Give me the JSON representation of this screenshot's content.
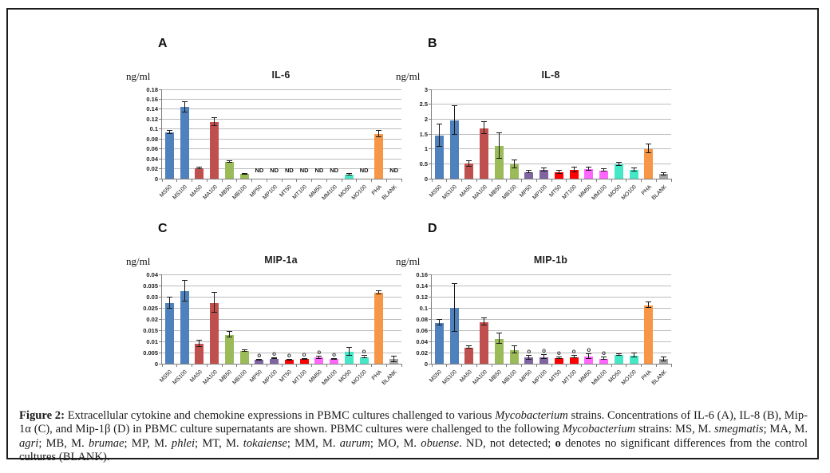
{
  "figure": {
    "caption_segments": [
      {
        "text": "Figure 2:",
        "bold": true
      },
      {
        "text": " Extracellular cytokine and chemokine expressions in PBMC cultures challenged to various "
      },
      {
        "text": "Mycobacterium",
        "italic": true
      },
      {
        "text": " strains. Concentrations of IL-6 (A), IL-8 (B), Mip-1α (C), and Mip-1β (D) in PBMC culture supernatants are shown. PBMC cultures were challenged to the following "
      },
      {
        "text": "Mycobacterium",
        "italic": true
      },
      {
        "text": " strains: MS, M. "
      },
      {
        "text": "smegmatis",
        "italic": true
      },
      {
        "text": "; MA, M. "
      },
      {
        "text": "agri",
        "italic": true
      },
      {
        "text": "; MB, M. "
      },
      {
        "text": "brumae",
        "italic": true
      },
      {
        "text": "; MP, M. "
      },
      {
        "text": "phlei",
        "italic": true
      },
      {
        "text": "; MT, M. "
      },
      {
        "text": "tokaiense",
        "italic": true
      },
      {
        "text": "; MM, M. "
      },
      {
        "text": "aurum",
        "italic": true
      },
      {
        "text": "; MO, M. "
      },
      {
        "text": "obuense",
        "italic": true
      },
      {
        "text": ". ND, not detected; "
      },
      {
        "text": "o",
        "bold": true
      },
      {
        "text": " denotes no significant differences from the control cultures (BLANK)."
      }
    ]
  },
  "chart_data": {
    "type": "bar",
    "legend_position": "none",
    "grid": true,
    "nd_label": "ND",
    "sig_label": "o",
    "gridline_color": "#bcbcbc",
    "axis_color": "#808080",
    "error_bar_color": "#1a1a1a",
    "categories": [
      "MS50",
      "MS100",
      "MA50",
      "MA100",
      "MB50",
      "MB100",
      "MP50",
      "MP100",
      "MT50",
      "MT100",
      "MM50",
      "MM100",
      "MO50",
      "MO100",
      "PHA",
      "BLANK"
    ],
    "bar_colors": [
      "#4F81BD",
      "#4F81BD",
      "#C0504D",
      "#C0504D",
      "#9BBB59",
      "#9BBB59",
      "#8064A2",
      "#8064A2",
      "#FE0000",
      "#FE0000",
      "#FF66FF",
      "#FF66FF",
      "#45E8C6",
      "#45E8C6",
      "#F79646",
      "#A5A5A5"
    ],
    "charts": [
      {
        "panel": "A",
        "title": "IL-6",
        "y_axis_label": "ng/ml",
        "ymax": 0.18,
        "ylim": [
          0,
          0.18
        ],
        "tick_values": [
          0,
          0.02,
          0.04,
          0.06,
          0.08,
          0.1,
          0.12,
          0.14,
          0.16,
          0.18
        ],
        "tick_labels": [
          "0",
          "0.02",
          "0.04",
          "0.06",
          "0.08",
          "0.1",
          "0.12",
          "0.14",
          "0.16",
          "0.18"
        ],
        "values": [
          0.093,
          0.144,
          0.021,
          0.114,
          0.034,
          0.009,
          null,
          null,
          null,
          null,
          null,
          null,
          0.008,
          null,
          0.09,
          null
        ],
        "errors": [
          0.003,
          0.011,
          0.002,
          0.008,
          0.002,
          0.001,
          0,
          0,
          0,
          0,
          0,
          0,
          0.001,
          0,
          0.007,
          0
        ],
        "nd": [
          false,
          false,
          false,
          false,
          false,
          false,
          true,
          true,
          true,
          true,
          true,
          true,
          false,
          true,
          false,
          true
        ],
        "sig": [
          false,
          false,
          false,
          false,
          false,
          false,
          false,
          false,
          false,
          false,
          false,
          false,
          false,
          false,
          false,
          false
        ]
      },
      {
        "panel": "B",
        "title": "IL-8",
        "y_axis_label": "ng/ml",
        "ymax": 3,
        "ylim": [
          0,
          3
        ],
        "tick_values": [
          0,
          0.5,
          1,
          1.5,
          2,
          2.5,
          3
        ],
        "tick_labels": [
          "0",
          "0.5",
          "1",
          "1.5",
          "2",
          "2.5",
          "3"
        ],
        "values": [
          1.45,
          1.95,
          0.5,
          1.7,
          1.1,
          0.48,
          0.22,
          0.3,
          0.22,
          0.3,
          0.32,
          0.28,
          0.48,
          0.3,
          1.0,
          0.15
        ],
        "errors": [
          0.38,
          0.48,
          0.1,
          0.2,
          0.44,
          0.13,
          0.04,
          0.05,
          0.06,
          0.08,
          0.05,
          0.05,
          0.05,
          0.06,
          0.15,
          0.03
        ],
        "nd": [
          false,
          false,
          false,
          false,
          false,
          false,
          false,
          false,
          false,
          false,
          false,
          false,
          false,
          false,
          false,
          false
        ],
        "sig": [
          false,
          false,
          false,
          false,
          false,
          false,
          false,
          false,
          false,
          false,
          false,
          false,
          false,
          false,
          false,
          false
        ]
      },
      {
        "panel": "C",
        "title": "MIP-1a",
        "y_axis_label": "ng/ml",
        "ymax": 0.04,
        "ylim": [
          0,
          0.04
        ],
        "tick_values": [
          0,
          0.005,
          0.01,
          0.015,
          0.02,
          0.025,
          0.03,
          0.035,
          0.04
        ],
        "tick_labels": [
          "0",
          "0.005",
          "0.01",
          "0.015",
          "0.02",
          "0.025",
          "0.03",
          "0.035",
          "0.04"
        ],
        "values": [
          0.027,
          0.0325,
          0.009,
          0.0273,
          0.013,
          0.0057,
          0.0017,
          0.0023,
          0.0017,
          0.002,
          0.0027,
          0.002,
          0.0055,
          0.003,
          0.0318,
          0.002
        ],
        "errors": [
          0.0025,
          0.0045,
          0.0015,
          0.0045,
          0.0012,
          0.0003,
          0.0002,
          0.0003,
          0.0002,
          0.0003,
          0.0004,
          0.0003,
          0.0018,
          0.0004,
          0.0008,
          0.0012
        ],
        "nd": [
          false,
          false,
          false,
          false,
          false,
          false,
          false,
          false,
          false,
          false,
          false,
          false,
          false,
          false,
          false,
          false
        ],
        "sig": [
          false,
          false,
          false,
          false,
          false,
          false,
          true,
          true,
          true,
          true,
          true,
          true,
          false,
          true,
          false,
          false
        ]
      },
      {
        "panel": "D",
        "title": "MIP-1b",
        "y_axis_label": "ng/ml",
        "ymax": 0.16,
        "ylim": [
          0,
          0.16
        ],
        "tick_values": [
          0,
          0.02,
          0.04,
          0.06,
          0.08,
          0.1,
          0.12,
          0.14,
          0.16
        ],
        "tick_labels": [
          "0",
          "0.02",
          "0.04",
          "0.06",
          "0.08",
          "0.1",
          "0.12",
          "0.14",
          "0.16"
        ],
        "values": [
          0.073,
          0.1,
          0.029,
          0.075,
          0.045,
          0.025,
          0.011,
          0.012,
          0.01,
          0.012,
          0.013,
          0.009,
          0.016,
          0.015,
          0.105,
          0.008
        ],
        "errors": [
          0.005,
          0.043,
          0.002,
          0.007,
          0.009,
          0.007,
          0.004,
          0.004,
          0.002,
          0.002,
          0.004,
          0.002,
          0.001,
          0.003,
          0.005,
          0.003
        ],
        "nd": [
          false,
          false,
          false,
          false,
          false,
          false,
          false,
          false,
          false,
          false,
          false,
          false,
          false,
          false,
          false,
          false
        ],
        "sig": [
          false,
          false,
          false,
          false,
          false,
          false,
          true,
          true,
          true,
          true,
          true,
          true,
          false,
          false,
          false,
          false
        ]
      }
    ]
  }
}
